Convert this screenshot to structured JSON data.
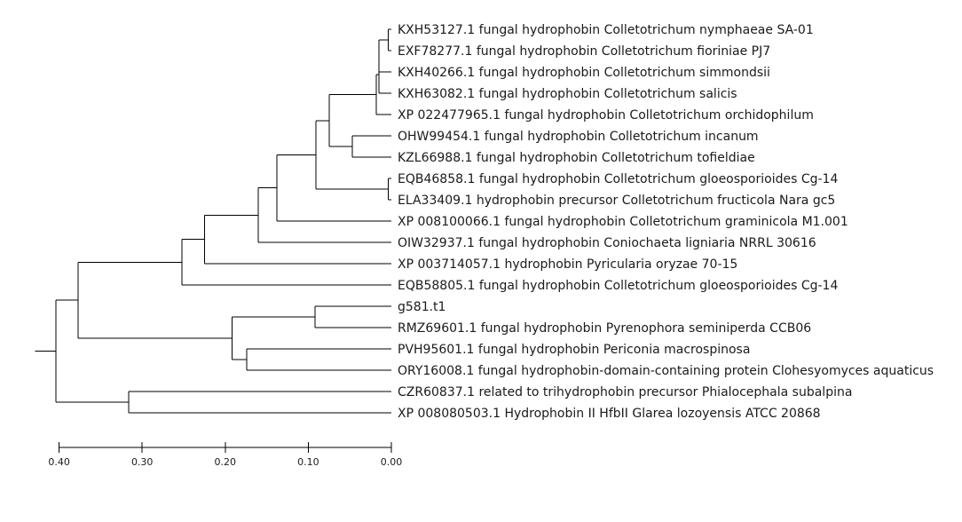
{
  "tree": {
    "type": "phylogenetic_tree",
    "leaves": [
      "KXH53127.1 fungal hydrophobin Colletotrichum nymphaeae SA-01",
      "EXF78277.1 fungal hydrophobin Colletotrichum fioriniae PJ7",
      "KXH40266.1 fungal hydrophobin Colletotrichum simmondsii",
      "KXH63082.1 fungal hydrophobin Colletotrichum salicis",
      "XP 022477965.1 fungal hydrophobin Colletotrichum orchidophilum",
      "OHW99454.1 fungal hydrophobin Colletotrichum incanum",
      "KZL66988.1 fungal hydrophobin Colletotrichum tofieldiae",
      "EQB46858.1 fungal hydrophobin Colletotrichum gloeosporioides Cg-14",
      "ELA33409.1 hydrophobin precursor Colletotrichum fructicola Nara gc5",
      "XP 008100066.1 fungal hydrophobin Colletotrichum graminicola M1.001",
      "OIW32937.1 fungal hydrophobin Coniochaeta ligniaria NRRL 30616",
      "XP 003714057.1 hydrophobin Pyricularia oryzae 70-15",
      "EQB58805.1 fungal hydrophobin Colletotrichum gloeosporioides Cg-14",
      "g581.t1",
      "RMZ69601.1 fungal hydrophobin Pyrenophora seminiperda CCB06",
      "PVH95601.1 fungal hydrophobin Periconia macrospinosa",
      "ORY16008.1 fungal hydrophobin-domain-containing protein Clohesyomyces aquaticus",
      "CZR60837.1 related to trihydrophobin precursor Phialocephala subalpina",
      "XP 008080503.1 Hydrophobin II HfbII Glarea lozoyensis ATCC 20868"
    ],
    "nodes": [
      {
        "id": "n1",
        "depth": 0.004,
        "children": [
          0,
          1
        ]
      },
      {
        "id": "n2",
        "depth": 0.015,
        "children": [
          "n1",
          2
        ]
      },
      {
        "id": "n3",
        "depth": 0.015,
        "children": [
          "n2",
          3
        ]
      },
      {
        "id": "n4",
        "depth": 0.018,
        "children": [
          "n3",
          4
        ]
      },
      {
        "id": "n5",
        "depth": 0.047,
        "children": [
          5,
          6
        ]
      },
      {
        "id": "n6",
        "depth": 0.075,
        "children": [
          "n4",
          "n5"
        ]
      },
      {
        "id": "n7",
        "depth": 0.004,
        "children": [
          7,
          8
        ]
      },
      {
        "id": "n8",
        "depth": 0.091,
        "children": [
          "n6",
          "n7"
        ]
      },
      {
        "id": "n9",
        "depth": 0.138,
        "children": [
          "n8",
          9
        ]
      },
      {
        "id": "n10",
        "depth": 0.16,
        "children": [
          "n9",
          10
        ]
      },
      {
        "id": "n11",
        "depth": 0.225,
        "children": [
          "n10",
          11
        ]
      },
      {
        "id": "n12",
        "depth": 0.252,
        "children": [
          "n11",
          12
        ]
      },
      {
        "id": "n13",
        "depth": 0.092,
        "children": [
          13,
          14
        ]
      },
      {
        "id": "n14",
        "depth": 0.174,
        "children": [
          15,
          16
        ]
      },
      {
        "id": "n15",
        "depth": 0.192,
        "children": [
          "n13",
          "n14"
        ]
      },
      {
        "id": "n16",
        "depth": 0.377,
        "children": [
          "n12",
          "n15"
        ]
      },
      {
        "id": "n17",
        "depth": 0.316,
        "children": [
          17,
          18
        ]
      },
      {
        "id": "n18",
        "depth": 0.404,
        "children": [
          "n16",
          "n17"
        ]
      }
    ],
    "root": "n18",
    "root_stub": 0.025
  },
  "scale_axis": {
    "min": 0.0,
    "max": 0.4,
    "reversed": true,
    "ticks": [
      {
        "value": 0.4,
        "label": "0.40"
      },
      {
        "value": 0.3,
        "label": "0.30"
      },
      {
        "value": 0.2,
        "label": "0.20"
      },
      {
        "value": 0.1,
        "label": "0.10"
      },
      {
        "value": 0.0,
        "label": "0.00"
      }
    ]
  },
  "colors": {
    "branch": "#000000",
    "text": "#1a1a1a"
  }
}
